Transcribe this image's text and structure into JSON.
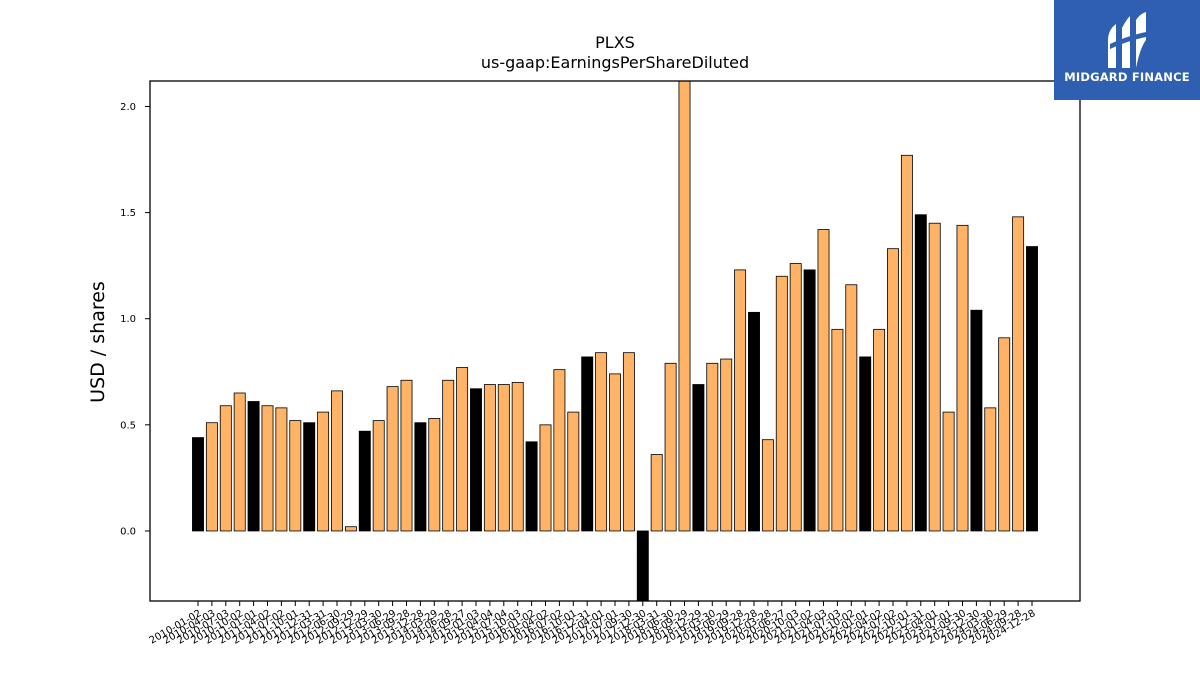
{
  "logo": {
    "text": "MIDGARD FINANCE",
    "bg_color": "#2f5fb0"
  },
  "chart_data": {
    "type": "bar",
    "title": "PLXS",
    "subtitle": "us-gaap:EarningsPerShareDiluted",
    "xlabel": "",
    "ylabel": "USD / shares",
    "ylim": [
      -0.33,
      2.12
    ],
    "yticks": [
      0.0,
      0.5,
      1.0,
      1.5,
      2.0
    ],
    "colors": {
      "quarter": "#ffb366",
      "annual": "#000000"
    },
    "categories": [
      "2010-01-02",
      "2010-04-03",
      "2010-07-03",
      "2010-10-02",
      "2011-01-01",
      "2011-04-02",
      "2011-07-02",
      "2011-10-01",
      "2011-12-31",
      "2012-03-31",
      "2012-06-30",
      "2012-09-29",
      "2012-12-29",
      "2013-03-30",
      "2013-06-29",
      "2013-09-28",
      "2013-12-28",
      "2014-03-29",
      "2014-06-28",
      "2014-09-27",
      "2015-01-03",
      "2015-04-04",
      "2015-07-04",
      "2015-10-03",
      "2016-01-02",
      "2016-04-02",
      "2016-07-02",
      "2016-10-01",
      "2016-12-31",
      "2017-04-01",
      "2017-07-01",
      "2017-09-30",
      "2017-12-30",
      "2018-03-31",
      "2018-06-30",
      "2018-09-29",
      "2018-12-29",
      "2019-03-30",
      "2019-06-29",
      "2019-09-28",
      "2019-12-28",
      "2020-03-28",
      "2020-06-27",
      "2020-10-03",
      "2021-01-02",
      "2021-04-03",
      "2021-07-03",
      "2021-10-02",
      "2022-01-01",
      "2022-04-02",
      "2022-07-02",
      "2022-10-01",
      "2022-12-31",
      "2023-04-01",
      "2023-07-01",
      "2023-09-30",
      "2023-12-30",
      "2024-03-30",
      "2024-06-29",
      "2024-09-28",
      "2024-12-28"
    ],
    "values": [
      0.44,
      0.51,
      0.59,
      0.65,
      0.61,
      0.59,
      0.58,
      0.52,
      0.51,
      0.56,
      0.66,
      0.02,
      0.47,
      0.52,
      0.68,
      0.71,
      0.51,
      0.53,
      0.71,
      0.77,
      0.67,
      0.69,
      0.69,
      0.7,
      0.42,
      0.5,
      0.76,
      0.56,
      0.82,
      0.84,
      0.74,
      0.84,
      -0.33,
      0.36,
      0.79,
      2.13,
      0.69,
      0.79,
      0.81,
      1.23,
      1.03,
      0.43,
      1.2,
      1.26,
      1.23,
      1.42,
      0.95,
      1.16,
      0.82,
      0.95,
      1.33,
      1.77,
      1.49,
      1.45,
      0.56,
      1.44,
      1.04,
      0.58,
      0.91,
      1.48,
      1.34
    ],
    "annual_flags": [
      1,
      0,
      0,
      0,
      1,
      0,
      0,
      0,
      1,
      0,
      0,
      0,
      1,
      0,
      0,
      0,
      1,
      0,
      0,
      0,
      1,
      0,
      0,
      0,
      1,
      0,
      0,
      0,
      1,
      0,
      0,
      0,
      1,
      0,
      0,
      0,
      1,
      0,
      0,
      0,
      1,
      0,
      0,
      0,
      1,
      0,
      0,
      0,
      1,
      0,
      0,
      0,
      1,
      0,
      0,
      0,
      1,
      0,
      0,
      0,
      1
    ]
  }
}
